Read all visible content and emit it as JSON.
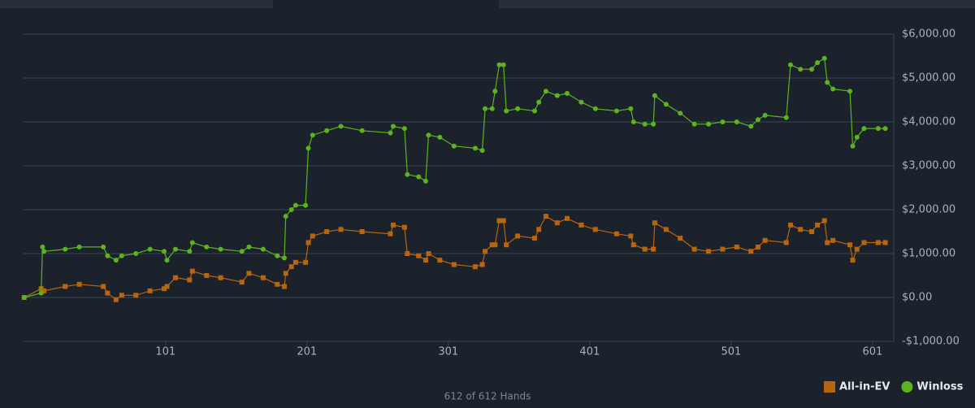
{
  "chart_data": {
    "type": "line",
    "footer": "612 of 612 Hands",
    "x": [
      1,
      13,
      14,
      15,
      30,
      40,
      57,
      60,
      66,
      70,
      80,
      90,
      100,
      102,
      108,
      118,
      120,
      130,
      140,
      155,
      160,
      170,
      180,
      185,
      186,
      190,
      193,
      200,
      202,
      205,
      215,
      225,
      240,
      260,
      262,
      270,
      272,
      280,
      285,
      287,
      295,
      305,
      320,
      325,
      327,
      332,
      334,
      337,
      340,
      342,
      350,
      362,
      365,
      370,
      378,
      385,
      395,
      405,
      420,
      430,
      432,
      440,
      446,
      447,
      455,
      465,
      475,
      485,
      495,
      505,
      515,
      520,
      525,
      540,
      543,
      550,
      558,
      562,
      567,
      569,
      573,
      585,
      587,
      590,
      595,
      605,
      610
    ],
    "series": [
      {
        "name": "All-in-EV",
        "color": "#b8650f",
        "marker": "square",
        "values": [
          0,
          200,
          150,
          150,
          250,
          300,
          250,
          100,
          -50,
          50,
          50,
          150,
          200,
          250,
          450,
          400,
          600,
          500,
          450,
          350,
          550,
          450,
          300,
          250,
          550,
          700,
          800,
          800,
          1250,
          1400,
          1500,
          1550,
          1500,
          1450,
          1650,
          1600,
          1000,
          950,
          850,
          1000,
          850,
          750,
          700,
          750,
          1050,
          1200,
          1200,
          1750,
          1750,
          1200,
          1400,
          1350,
          1550,
          1850,
          1700,
          1800,
          1650,
          1550,
          1450,
          1400,
          1200,
          1100,
          1100,
          1700,
          1550,
          1350,
          1100,
          1050,
          1100,
          1150,
          1050,
          1150,
          1300,
          1250,
          1650,
          1550,
          1500,
          1650,
          1750,
          1250,
          1300,
          1200,
          850,
          1100,
          1250,
          1250,
          1250
        ]
      },
      {
        "name": "Winloss",
        "color": "#5db31f",
        "marker": "circle",
        "values": [
          0,
          100,
          1150,
          1050,
          1100,
          1150,
          1150,
          950,
          850,
          950,
          1000,
          1100,
          1050,
          850,
          1100,
          1050,
          1250,
          1150,
          1100,
          1050,
          1150,
          1100,
          950,
          900,
          1850,
          2000,
          2100,
          2100,
          3400,
          3700,
          3800,
          3900,
          3800,
          3750,
          3900,
          3850,
          2800,
          2750,
          2650,
          3700,
          3650,
          3450,
          3400,
          3350,
          4300,
          4300,
          4700,
          5300,
          5300,
          4250,
          4300,
          4250,
          4450,
          4700,
          4600,
          4650,
          4450,
          4300,
          4250,
          4300,
          4000,
          3950,
          3950,
          4600,
          4400,
          4200,
          3950,
          3950,
          4000,
          4000,
          3900,
          4050,
          4150,
          4100,
          5300,
          5200,
          5200,
          5350,
          5450,
          4900,
          4750,
          4700,
          3450,
          3650,
          3850,
          3850,
          3850
        ]
      }
    ],
    "xlim": [
      0,
      616
    ],
    "xticks": [
      101,
      201,
      301,
      401,
      501,
      601
    ],
    "ylim": [
      -1000,
      6000
    ],
    "yticks": [
      {
        "value": -1000,
        "label": "-$1,000.00"
      },
      {
        "value": 0,
        "label": "$0.00"
      },
      {
        "value": 1000,
        "label": "$1,000.00"
      },
      {
        "value": 2000,
        "label": "$2,000.00"
      },
      {
        "value": 3000,
        "label": "$3,000.00"
      },
      {
        "value": 4000,
        "label": "$4,000.00"
      },
      {
        "value": 5000,
        "label": "$5,000.00"
      },
      {
        "value": 6000,
        "label": "$6,000.00"
      }
    ],
    "grid": true,
    "legend": "bottom-right"
  }
}
